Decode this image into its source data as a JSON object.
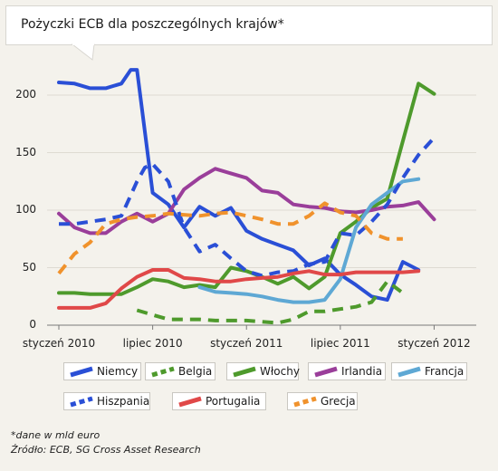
{
  "chart_data": {
    "type": "line",
    "title": "Pożyczki ECB dla poszczególnych krajów*",
    "xlabel": "",
    "ylabel": "",
    "ylim": [
      0,
      225
    ],
    "yticks": [
      0,
      50,
      100,
      150,
      200
    ],
    "x_months": 27,
    "x_ticks": [
      {
        "m": 0,
        "label": "styczeń 2010"
      },
      {
        "m": 6,
        "label": "lipiec 2010"
      },
      {
        "m": 12,
        "label": "styczeń 2011"
      },
      {
        "m": 18,
        "label": "lipiec 2011"
      },
      {
        "m": 24,
        "label": "styczeń 2012"
      }
    ],
    "legend": "bottom",
    "series": [
      {
        "name": "Niemcy",
        "color": "#2a4fd6",
        "dashed": false,
        "points": [
          [
            0,
            211
          ],
          [
            1,
            210
          ],
          [
            2,
            206
          ],
          [
            3,
            206
          ],
          [
            4,
            210
          ],
          [
            4.6,
            222
          ],
          [
            5,
            222
          ],
          [
            6,
            115
          ],
          [
            7,
            105
          ],
          [
            8,
            85
          ],
          [
            9,
            103
          ],
          [
            10,
            95
          ],
          [
            11,
            102
          ],
          [
            12,
            82
          ],
          [
            13,
            75
          ],
          [
            14,
            70
          ],
          [
            15,
            65
          ],
          [
            16,
            52
          ],
          [
            17,
            58
          ],
          [
            18,
            44
          ],
          [
            19,
            35
          ],
          [
            20,
            25
          ],
          [
            21,
            22
          ],
          [
            22,
            55
          ],
          [
            23,
            48
          ]
        ]
      },
      {
        "name": "Belgia",
        "color": "#4e9a2c",
        "dashed": true,
        "points": [
          [
            5,
            13
          ],
          [
            6,
            9
          ],
          [
            7,
            5
          ],
          [
            8,
            5
          ],
          [
            9,
            5
          ],
          [
            10,
            4
          ],
          [
            11,
            4
          ],
          [
            12,
            4
          ],
          [
            13,
            3
          ],
          [
            14,
            2
          ],
          [
            15,
            5
          ],
          [
            16,
            12
          ],
          [
            17,
            12
          ],
          [
            18,
            14
          ],
          [
            19,
            16
          ],
          [
            20,
            20
          ],
          [
            21,
            38
          ],
          [
            22,
            28
          ]
        ]
      },
      {
        "name": "Włochy",
        "color": "#4e9a2c",
        "dashed": false,
        "points": [
          [
            0,
            28
          ],
          [
            1,
            28
          ],
          [
            2,
            27
          ],
          [
            3,
            27
          ],
          [
            4,
            27
          ],
          [
            5,
            33
          ],
          [
            6,
            40
          ],
          [
            7,
            38
          ],
          [
            8,
            33
          ],
          [
            9,
            35
          ],
          [
            10,
            33
          ],
          [
            11,
            50
          ],
          [
            12,
            47
          ],
          [
            13,
            42
          ],
          [
            14,
            36
          ],
          [
            15,
            42
          ],
          [
            16,
            32
          ],
          [
            17,
            42
          ],
          [
            18,
            80
          ],
          [
            19,
            90
          ],
          [
            20,
            102
          ],
          [
            21,
            110
          ],
          [
            22,
            160
          ],
          [
            23,
            210
          ],
          [
            24,
            201
          ]
        ]
      },
      {
        "name": "Irlandia",
        "color": "#9a3e9a",
        "dashed": false,
        "points": [
          [
            0,
            97
          ],
          [
            1,
            85
          ],
          [
            2,
            80
          ],
          [
            3,
            80
          ],
          [
            4,
            90
          ],
          [
            5,
            97
          ],
          [
            6,
            90
          ],
          [
            7,
            97
          ],
          [
            8,
            118
          ],
          [
            9,
            128
          ],
          [
            10,
            136
          ],
          [
            11,
            132
          ],
          [
            12,
            128
          ],
          [
            13,
            117
          ],
          [
            14,
            115
          ],
          [
            15,
            105
          ],
          [
            16,
            103
          ],
          [
            17,
            102
          ],
          [
            18,
            99
          ],
          [
            19,
            98
          ],
          [
            20,
            100
          ],
          [
            21,
            103
          ],
          [
            22,
            104
          ],
          [
            23,
            107
          ],
          [
            24,
            92
          ]
        ]
      },
      {
        "name": "Francja",
        "color": "#5ea8d4",
        "dashed": false,
        "points": [
          [
            9,
            33
          ],
          [
            10,
            29
          ],
          [
            11,
            28
          ],
          [
            12,
            27
          ],
          [
            13,
            25
          ],
          [
            14,
            22
          ],
          [
            15,
            20
          ],
          [
            16,
            20
          ],
          [
            17,
            22
          ],
          [
            18,
            40
          ],
          [
            19,
            85
          ],
          [
            20,
            105
          ],
          [
            21,
            115
          ],
          [
            22,
            125
          ],
          [
            23,
            127
          ]
        ]
      },
      {
        "name": "Hiszpania",
        "color": "#2a4fd6",
        "dashed": true,
        "points": [
          [
            0,
            88
          ],
          [
            1,
            88
          ],
          [
            2,
            90
          ],
          [
            3,
            92
          ],
          [
            4,
            95
          ],
          [
            5,
            125
          ],
          [
            5.5,
            137
          ],
          [
            6,
            140
          ],
          [
            7,
            125
          ],
          [
            8,
            85
          ],
          [
            9,
            64
          ],
          [
            10,
            70
          ],
          [
            11,
            58
          ],
          [
            12,
            47
          ],
          [
            13,
            43
          ],
          [
            14,
            46
          ],
          [
            15,
            47
          ],
          [
            16,
            53
          ],
          [
            17,
            55
          ],
          [
            18,
            80
          ],
          [
            19,
            78
          ],
          [
            20,
            90
          ],
          [
            21,
            105
          ],
          [
            22,
            128
          ],
          [
            23,
            148
          ],
          [
            24,
            163
          ]
        ]
      },
      {
        "name": "Portugalia",
        "color": "#e04848",
        "dashed": false,
        "points": [
          [
            0,
            15
          ],
          [
            1,
            15
          ],
          [
            2,
            15
          ],
          [
            3,
            19
          ],
          [
            4,
            32
          ],
          [
            5,
            42
          ],
          [
            6,
            48
          ],
          [
            7,
            48
          ],
          [
            8,
            41
          ],
          [
            9,
            40
          ],
          [
            10,
            38
          ],
          [
            11,
            38
          ],
          [
            12,
            40
          ],
          [
            13,
            41
          ],
          [
            14,
            42
          ],
          [
            15,
            45
          ],
          [
            16,
            47
          ],
          [
            17,
            44
          ],
          [
            18,
            44
          ],
          [
            19,
            46
          ],
          [
            20,
            46
          ],
          [
            21,
            46
          ],
          [
            22,
            46
          ],
          [
            23,
            47
          ]
        ]
      },
      {
        "name": "Grecja",
        "color": "#f0922c",
        "dashed": true,
        "points": [
          [
            0,
            45
          ],
          [
            1,
            62
          ],
          [
            2,
            72
          ],
          [
            3,
            88
          ],
          [
            4,
            92
          ],
          [
            5,
            94
          ],
          [
            6,
            95
          ],
          [
            7,
            97
          ],
          [
            8,
            96
          ],
          [
            9,
            95
          ],
          [
            10,
            97
          ],
          [
            11,
            98
          ],
          [
            12,
            95
          ],
          [
            13,
            92
          ],
          [
            14,
            88
          ],
          [
            15,
            88
          ],
          [
            16,
            95
          ],
          [
            17,
            106
          ],
          [
            18,
            98
          ],
          [
            19,
            95
          ],
          [
            20,
            80
          ],
          [
            21,
            75
          ],
          [
            22,
            75
          ]
        ]
      }
    ]
  },
  "legend_items": [
    "Niemcy",
    "Belgia",
    "Włochy",
    "Irlandia",
    "Francja",
    "Hiszpania",
    "Portugalia",
    "Grecja"
  ],
  "footnote": "*dane w mld euro",
  "source": "Źródło: ECB, SG Cross Asset Research",
  "colors": {
    "background": "#f4f2ec",
    "grid": "#dedbd2"
  }
}
